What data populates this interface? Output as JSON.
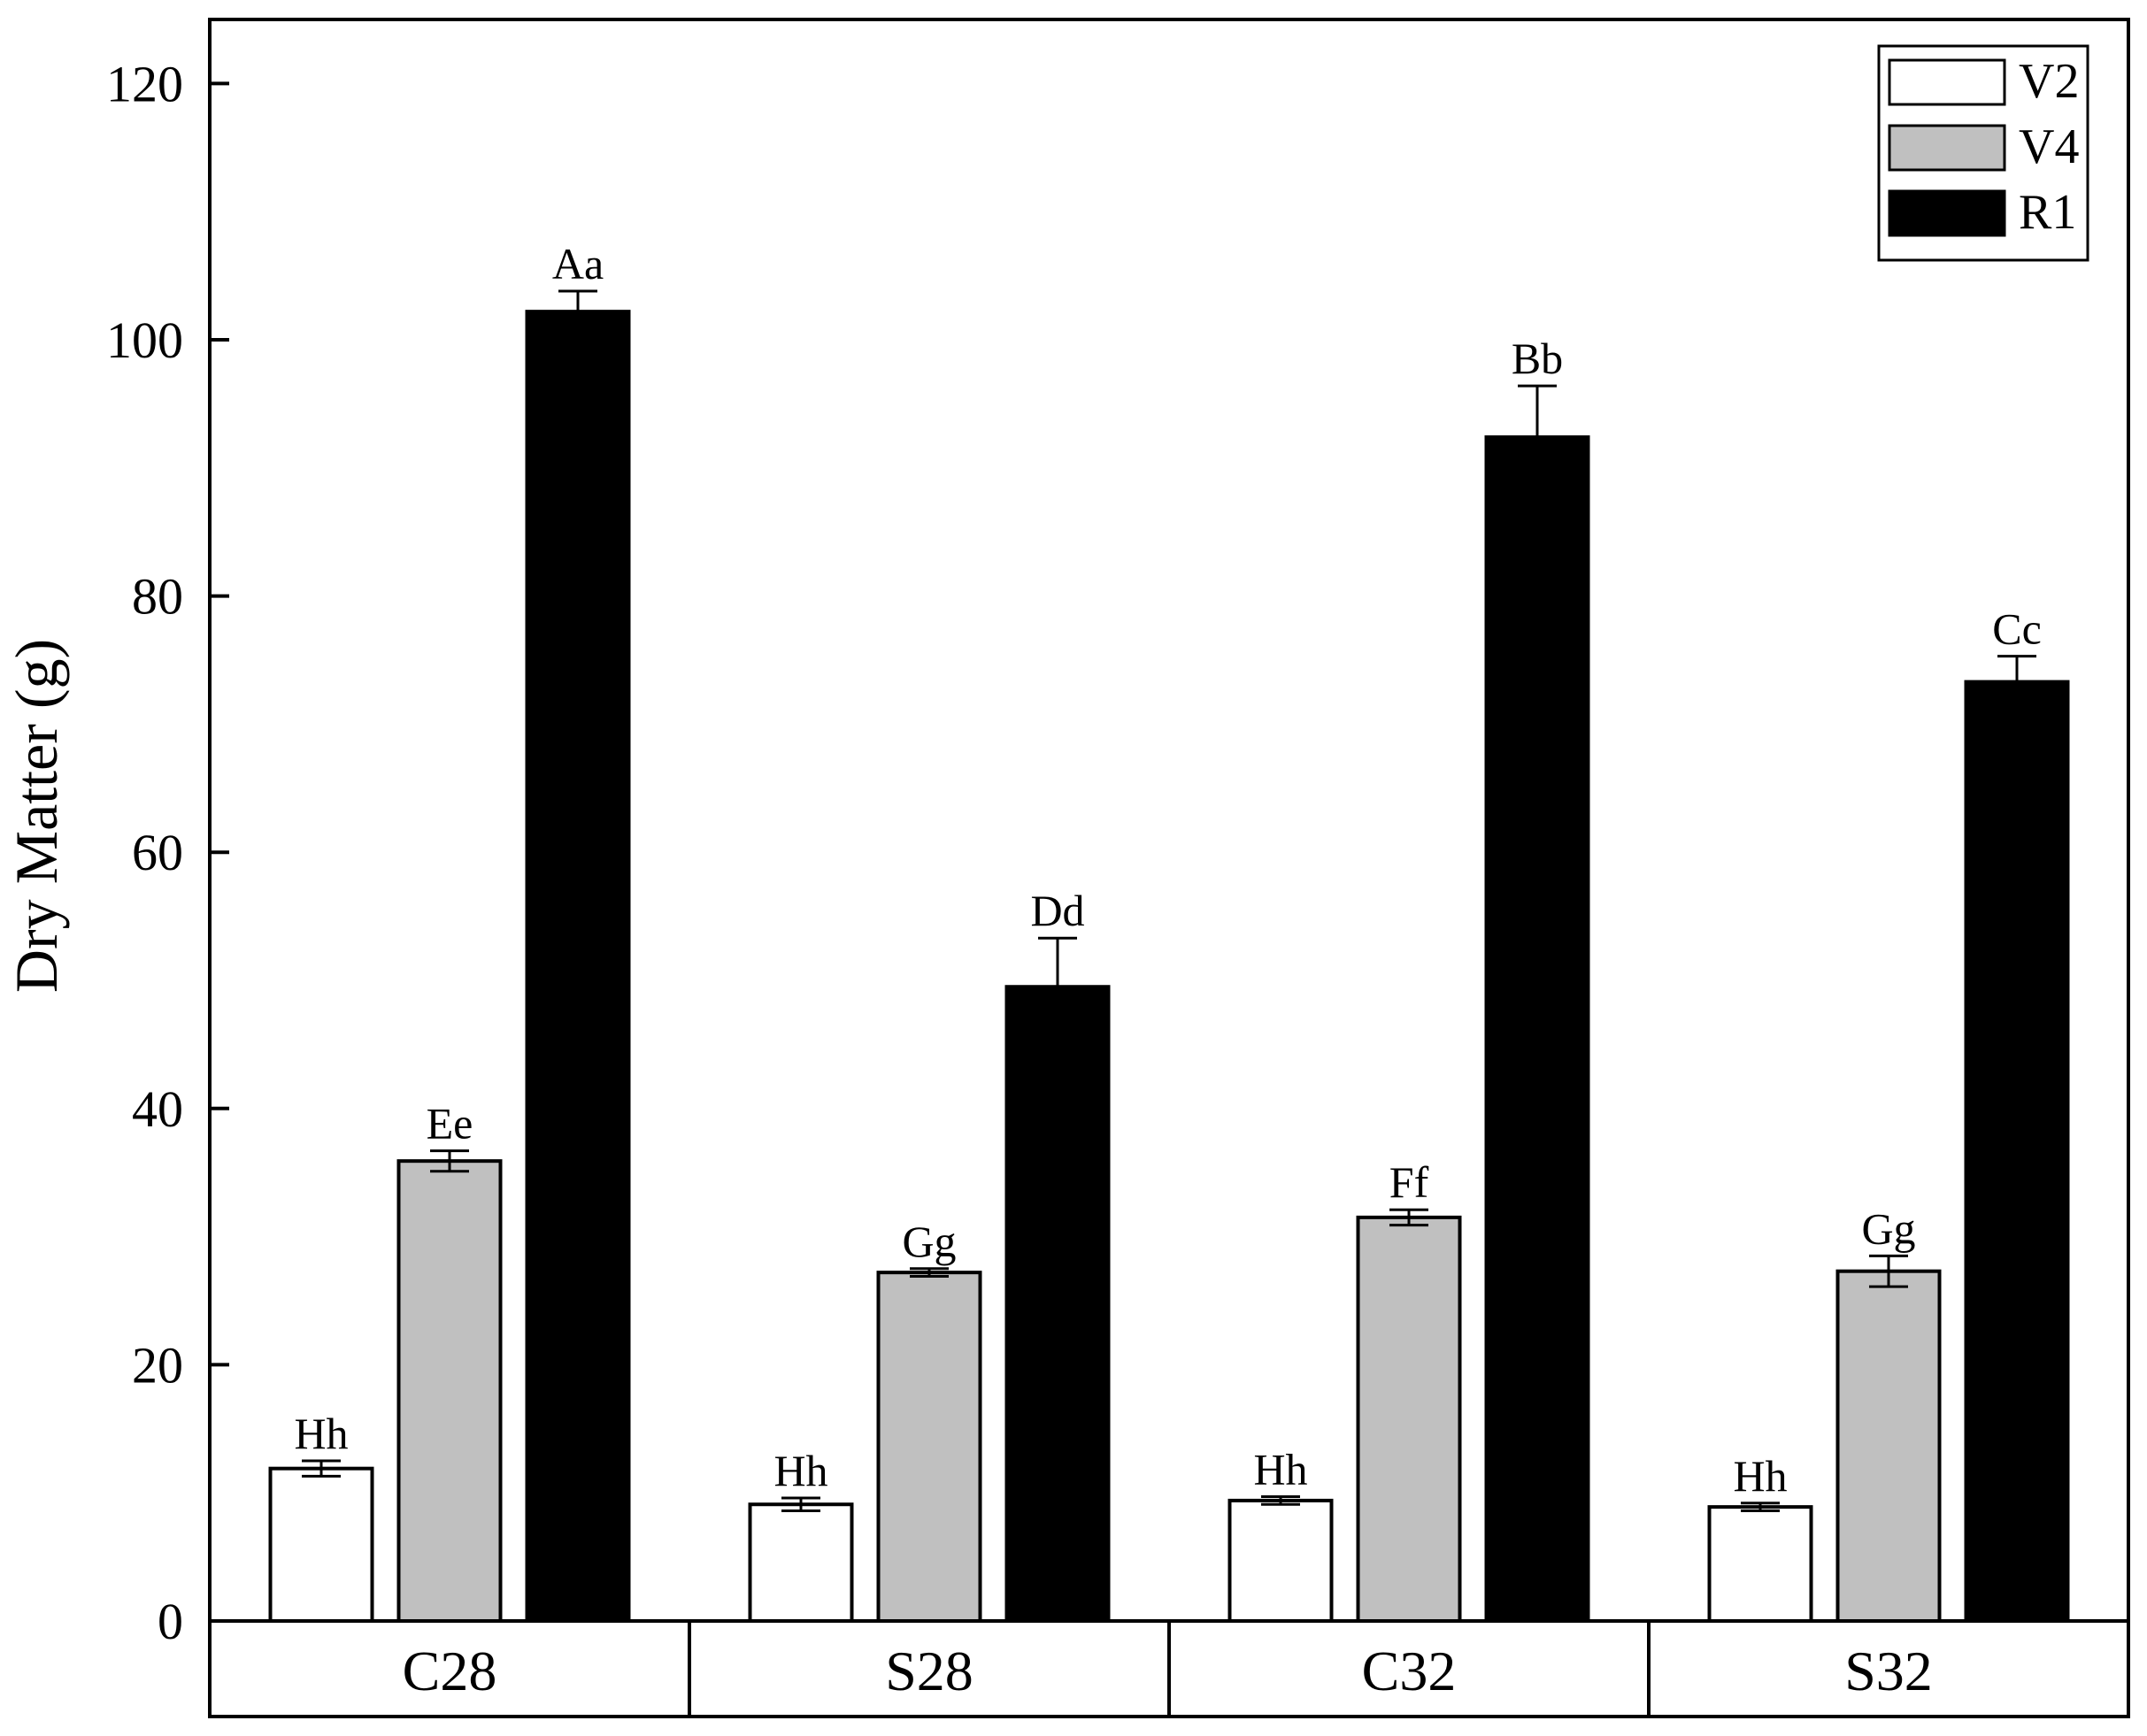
{
  "chart_data": {
    "type": "bar",
    "ylabel": "Dry Matter (g)",
    "xlabel": "",
    "ylim": [
      0,
      125
    ],
    "yticks": [
      0,
      20,
      40,
      60,
      80,
      100,
      120
    ],
    "categories": [
      "C28",
      "S28",
      "C32",
      "S32"
    ],
    "legend_position": "top-right",
    "grid": false,
    "series": [
      {
        "name": "V2",
        "color": "#ffffff",
        "values": [
          11.9,
          9.1,
          9.4,
          8.9
        ],
        "errors": [
          0.6,
          0.5,
          0.3,
          0.3
        ],
        "labels": [
          "Hh",
          "Hh",
          "Hh",
          "Hh"
        ]
      },
      {
        "name": "V4",
        "color": "#c0c0c0",
        "values": [
          35.9,
          27.2,
          31.5,
          27.3
        ],
        "errors": [
          0.8,
          0.3,
          0.6,
          1.2
        ],
        "labels": [
          "Ee",
          "Gg",
          "Ff",
          "Gg"
        ]
      },
      {
        "name": "R1",
        "color": "#000000",
        "values": [
          102.2,
          49.5,
          92.4,
          73.3
        ],
        "errors": [
          1.6,
          3.8,
          4.0,
          2.0
        ],
        "labels": [
          "Aa",
          "Dd",
          "Bb",
          "Cc"
        ]
      }
    ]
  }
}
